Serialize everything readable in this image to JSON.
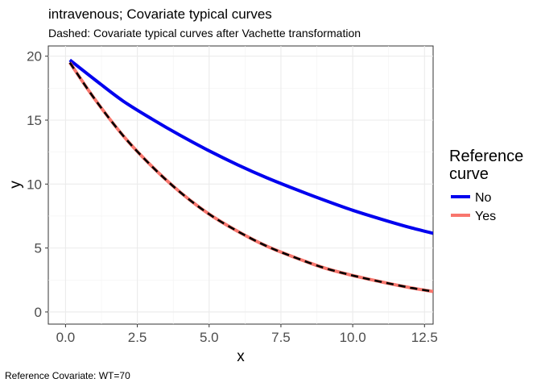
{
  "chart_data": {
    "type": "line",
    "title": "intravenous; Covariate typical curves",
    "subtitle": "Dashed: Covariate typical curves after Vachette transformation",
    "caption": "Reference Covariate: WT=70",
    "xlabel": "x",
    "ylabel": "y",
    "xlim": [
      -0.6,
      12.8
    ],
    "ylim": [
      -0.95,
      20.8
    ],
    "x_ticks": [
      0,
      2.5,
      5,
      7.5,
      10,
      12.5
    ],
    "x_tick_labels": [
      "0.0",
      "2.5",
      "5.0",
      "7.5",
      "10.0",
      "12.5"
    ],
    "y_ticks": [
      0,
      5,
      10,
      15,
      20
    ],
    "y_tick_labels": [
      "0",
      "5",
      "10",
      "15",
      "20"
    ],
    "legend": {
      "title_line1": "Reference",
      "title_line2": "curve",
      "position": "right",
      "entries": [
        {
          "label": "No",
          "color": "#0000ee"
        },
        {
          "label": "Yes",
          "color": "#f8766d"
        }
      ]
    },
    "series": [
      {
        "name": "No",
        "color": "#0000ee",
        "x": [
          0.15,
          1,
          2,
          3,
          4,
          5,
          6,
          7,
          8,
          9,
          10,
          11,
          12,
          12.8
        ],
        "y": [
          19.7,
          18.2,
          16.5,
          15.1,
          13.8,
          12.6,
          11.5,
          10.5,
          9.6,
          8.75,
          7.95,
          7.25,
          6.6,
          6.15
        ]
      },
      {
        "name": "Yes",
        "color": "#f8766d",
        "x": [
          0.15,
          1,
          2,
          3,
          4,
          5,
          6,
          7,
          8,
          9,
          10,
          11,
          12,
          12.8
        ],
        "y": [
          19.5,
          16.7,
          13.8,
          11.4,
          9.35,
          7.65,
          6.3,
          5.15,
          4.25,
          3.45,
          2.85,
          2.35,
          1.9,
          1.6
        ]
      },
      {
        "name": "Vachette transformed (dashed)",
        "color": "#000000",
        "dashed": true,
        "x": [
          0.15,
          1,
          2,
          3,
          4,
          5,
          6,
          7,
          8,
          9,
          10,
          11,
          12,
          12.8
        ],
        "y": [
          19.5,
          16.7,
          13.8,
          11.4,
          9.35,
          7.65,
          6.3,
          5.15,
          4.25,
          3.45,
          2.85,
          2.35,
          1.9,
          1.6
        ]
      }
    ]
  }
}
